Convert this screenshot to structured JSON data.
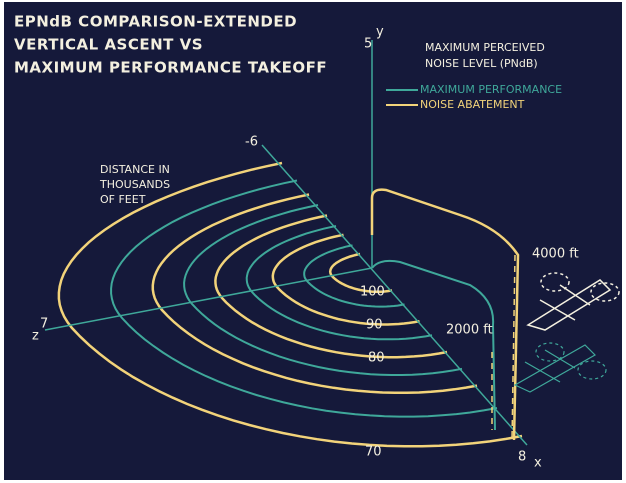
{
  "title": [
    "EPNdB COMPARISON-EXTENDED",
    "VERTICAL ASCENT VS",
    "MAXIMUM PERFORMANCE TAKEOFF"
  ],
  "legend": {
    "title": [
      "MAXIMUM PERCEIVED",
      "NOISE LEVEL (PNdB)"
    ],
    "items": [
      {
        "label": "MAXIMUM PERFORMANCE",
        "color": "#3fa89a"
      },
      {
        "label": "NOISE ABATEMENT",
        "color": "#f2d37a"
      }
    ]
  },
  "distance_note": [
    "DISTANCE IN",
    "THOUSANDS",
    "OF FEET"
  ],
  "axes": {
    "y": {
      "label": "y",
      "tick": "5"
    },
    "z": {
      "label": "z",
      "tick": "7"
    },
    "x": {
      "label": "x",
      "tick": "8",
      "back_tick": "-6"
    }
  },
  "contour_labels": [
    "100",
    "90",
    "80",
    "70"
  ],
  "altitudes": [
    "4000 ft",
    "2000 ft"
  ]
}
